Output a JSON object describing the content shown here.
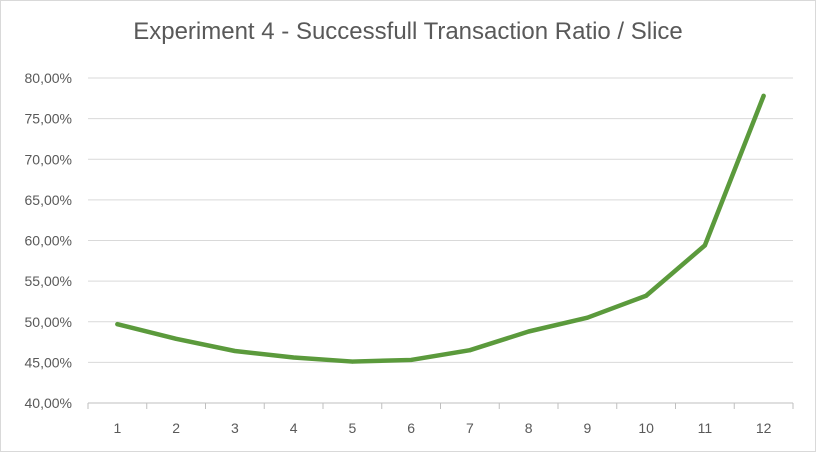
{
  "chart_data": {
    "type": "line",
    "title": "Experiment 4 - Successfull Transaction Ratio / Slice",
    "xlabel": "",
    "ylabel": "",
    "categories": [
      "1",
      "2",
      "3",
      "4",
      "5",
      "6",
      "7",
      "8",
      "9",
      "10",
      "11",
      "12"
    ],
    "series": [
      {
        "values": [
          49.7,
          47.9,
          46.4,
          45.6,
          45.1,
          45.3,
          46.5,
          48.8,
          50.5,
          53.2,
          59.4,
          77.8
        ]
      }
    ],
    "ylim": [
      40,
      80
    ],
    "yticks": [
      "40,00%",
      "45,00%",
      "50,00%",
      "55,00%",
      "60,00%",
      "65,00%",
      "70,00%",
      "75,00%",
      "80,00%"
    ],
    "grid": true,
    "legend": "none",
    "colors": {
      "line": "#5b9a3c",
      "grid": "#d9d9d9",
      "text": "#595959"
    }
  }
}
